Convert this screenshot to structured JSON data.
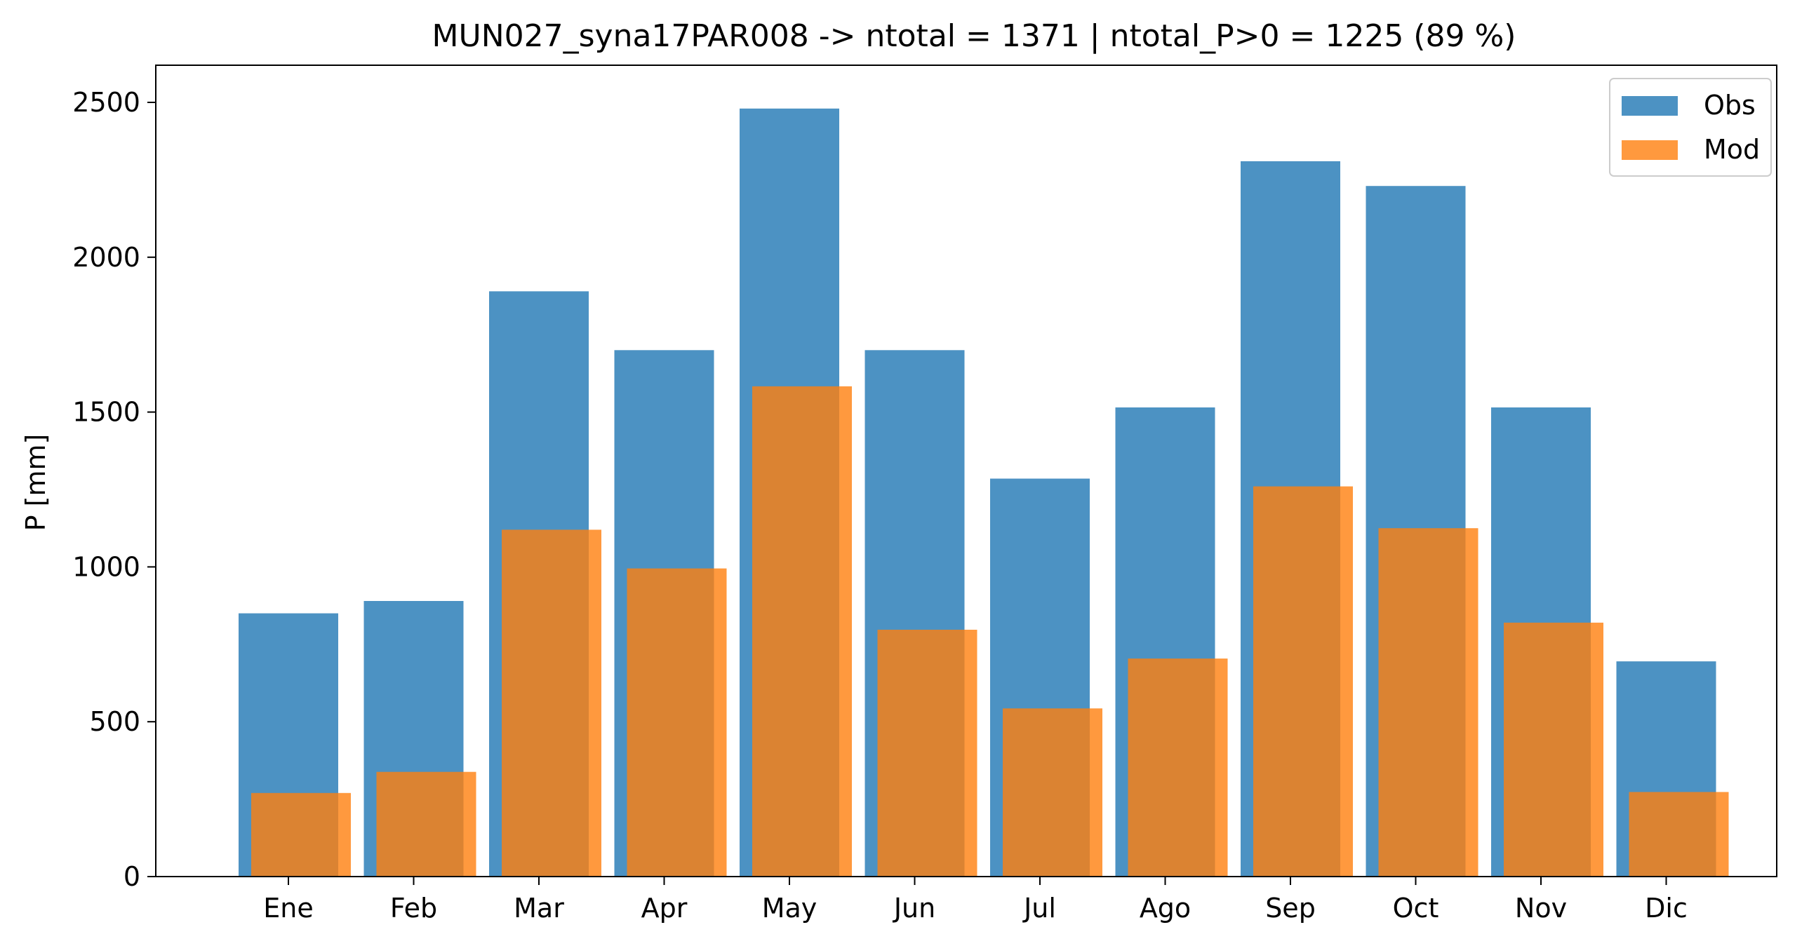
{
  "chart_data": {
    "type": "bar",
    "title": "MUN027_syna17PAR008 -> ntotal = 1371 | ntotal_P>0 = 1225 (89 %)",
    "xlabel": "",
    "ylabel": "P [mm]",
    "ylim": [
      0,
      2620
    ],
    "yticks": [
      0,
      500,
      1000,
      1500,
      2000,
      2500
    ],
    "categories": [
      "Ene",
      "Feb",
      "Mar",
      "Apr",
      "May",
      "Jun",
      "Jul",
      "Ago",
      "Sep",
      "Oct",
      "Nov",
      "Dic"
    ],
    "series": [
      {
        "name": "Obs",
        "color": "#1f77b4",
        "opacity": 0.8,
        "values": [
          850,
          890,
          1890,
          1700,
          2480,
          1700,
          1285,
          1515,
          2310,
          2230,
          1515,
          695
        ]
      },
      {
        "name": "Mod",
        "color": "#ff7f0e",
        "opacity": 0.8,
        "values": [
          270,
          338,
          1120,
          995,
          1583,
          797,
          543,
          704,
          1260,
          1125,
          820,
          273
        ]
      }
    ],
    "legend": "top-right",
    "grid": false
  }
}
